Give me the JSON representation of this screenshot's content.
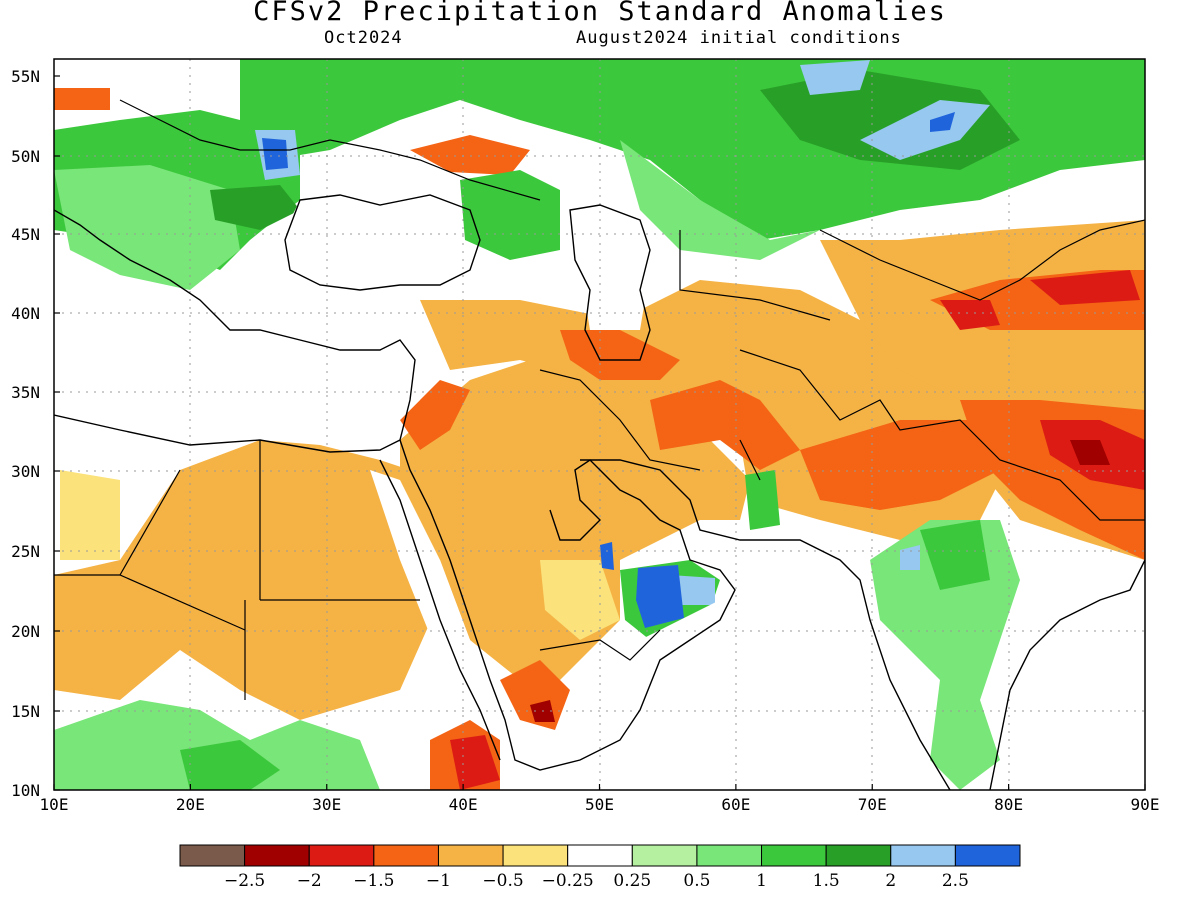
{
  "title": "CFSv2 Precipitation Standard Anomalies",
  "subtitle_left": "Oct2024",
  "subtitle_right": "August2024 initial conditions",
  "lon_labels": [
    "10E",
    "20E",
    "30E",
    "40E",
    "50E",
    "60E",
    "70E",
    "80E",
    "90E"
  ],
  "lat_labels": [
    "55N",
    "50N",
    "45N",
    "40N",
    "35N",
    "30N",
    "25N",
    "20N",
    "15N",
    "10N"
  ],
  "colorbar": {
    "colors": [
      "#7a5a4a",
      "#a00000",
      "#dc1c14",
      "#f46414",
      "#f5b245",
      "#fbe27a",
      "#ffffff",
      "#b4f0a0",
      "#78e678",
      "#3cc83c",
      "#28a028",
      "#96c8f0",
      "#2064dc"
    ],
    "labels": [
      "−2.5",
      "−2",
      "−1.5",
      "−1",
      "−0.5",
      "−0.25",
      "0.25",
      "0.5",
      "1",
      "1.5",
      "2",
      "2.5"
    ]
  }
}
